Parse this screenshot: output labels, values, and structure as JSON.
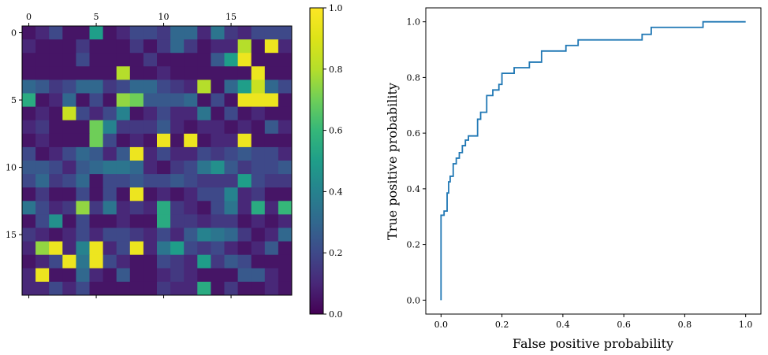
{
  "chart_data": [
    {
      "type": "heatmap",
      "rows": 20,
      "cols": 20,
      "x_ticks": [
        0,
        5,
        10,
        15
      ],
      "y_ticks": [
        0,
        5,
        10,
        15
      ],
      "tick_labels_x": [
        "0",
        "5",
        "10",
        "15"
      ],
      "tick_labels_y": [
        "0",
        "5",
        "10",
        "15"
      ],
      "colormap": "viridis",
      "vmin": 0.0,
      "vmax": 1.0,
      "colorbar_ticks": [
        "0.0",
        "0.2",
        "0.4",
        "0.6",
        "0.8",
        "1.0"
      ],
      "values": [
        [
          0.05,
          0.1,
          0.2,
          0.05,
          0.05,
          0.5,
          0.05,
          0.1,
          0.2,
          0.2,
          0.15,
          0.3,
          0.3,
          0.1,
          0.35,
          0.15,
          0.1,
          0.2,
          0.2,
          0.2
        ],
        [
          0.1,
          0.05,
          0.05,
          0.05,
          0.15,
          0.05,
          0.05,
          0.05,
          0.15,
          0.05,
          0.15,
          0.3,
          0.15,
          0.05,
          0.1,
          0.1,
          0.8,
          0.05,
          0.95,
          0.1
        ],
        [
          0.05,
          0.05,
          0.05,
          0.05,
          0.2,
          0.05,
          0.05,
          0.05,
          0.05,
          0.15,
          0.05,
          0.05,
          0.05,
          0.05,
          0.25,
          0.5,
          0.95,
          0.05,
          0.05,
          0.05
        ],
        [
          0.05,
          0.05,
          0.05,
          0.05,
          0.05,
          0.05,
          0.05,
          0.8,
          0.05,
          0.05,
          0.1,
          0.05,
          0.05,
          0.05,
          0.05,
          0.05,
          0.05,
          0.95,
          0.05,
          0.05
        ],
        [
          0.3,
          0.25,
          0.15,
          0.2,
          0.3,
          0.3,
          0.15,
          0.2,
          0.3,
          0.3,
          0.2,
          0.15,
          0.1,
          0.8,
          0.05,
          0.3,
          0.5,
          0.85,
          0.3,
          0.2
        ],
        [
          0.55,
          0.05,
          0.1,
          0.3,
          0.05,
          0.2,
          0.05,
          0.75,
          0.7,
          0.25,
          0.25,
          0.25,
          0.3,
          0.05,
          0.2,
          0.05,
          0.95,
          0.95,
          0.95,
          0.05
        ],
        [
          0.05,
          0.1,
          0.05,
          0.85,
          0.2,
          0.1,
          0.2,
          0.4,
          0.05,
          0.1,
          0.2,
          0.1,
          0.1,
          0.35,
          0.05,
          0.2,
          0.05,
          0.1,
          0.05,
          0.05
        ],
        [
          0.1,
          0.15,
          0.05,
          0.05,
          0.05,
          0.7,
          0.4,
          0.15,
          0.15,
          0.15,
          0.25,
          0.1,
          0.05,
          0.1,
          0.1,
          0.05,
          0.1,
          0.05,
          0.25,
          0.1
        ],
        [
          0.05,
          0.1,
          0.05,
          0.05,
          0.05,
          0.7,
          0.2,
          0.05,
          0.1,
          0.05,
          0.95,
          0.05,
          0.95,
          0.05,
          0.1,
          0.1,
          0.95,
          0.05,
          0.05,
          0.05
        ],
        [
          0.2,
          0.05,
          0.1,
          0.2,
          0.3,
          0.25,
          0.1,
          0.25,
          0.95,
          0.1,
          0.2,
          0.1,
          0.1,
          0.2,
          0.15,
          0.2,
          0.25,
          0.2,
          0.2,
          0.1
        ],
        [
          0.25,
          0.25,
          0.2,
          0.1,
          0.25,
          0.3,
          0.35,
          0.35,
          0.3,
          0.1,
          0.05,
          0.15,
          0.2,
          0.35,
          0.45,
          0.25,
          0.15,
          0.2,
          0.2,
          0.25
        ],
        [
          0.2,
          0.3,
          0.15,
          0.2,
          0.3,
          0.05,
          0.2,
          0.2,
          0.25,
          0.2,
          0.2,
          0.25,
          0.2,
          0.15,
          0.15,
          0.15,
          0.5,
          0.2,
          0.15,
          0.15
        ],
        [
          0.05,
          0.15,
          0.05,
          0.05,
          0.2,
          0.05,
          0.2,
          0.05,
          0.95,
          0.05,
          0.1,
          0.05,
          0.1,
          0.2,
          0.2,
          0.4,
          0.1,
          0.15,
          0.05,
          0.05
        ],
        [
          0.35,
          0.2,
          0.1,
          0.15,
          0.75,
          0.15,
          0.35,
          0.1,
          0.15,
          0.1,
          0.55,
          0.15,
          0.1,
          0.05,
          0.2,
          0.35,
          0.1,
          0.55,
          0.1,
          0.6
        ],
        [
          0.05,
          0.2,
          0.45,
          0.05,
          0.2,
          0.05,
          0.05,
          0.1,
          0.05,
          0.05,
          0.55,
          0.15,
          0.15,
          0.1,
          0.15,
          0.15,
          0.05,
          0.1,
          0.05,
          0.1
        ],
        [
          0.15,
          0.1,
          0.05,
          0.1,
          0.2,
          0.1,
          0.2,
          0.2,
          0.15,
          0.1,
          0.2,
          0.1,
          0.25,
          0.4,
          0.35,
          0.3,
          0.15,
          0.05,
          0.1,
          0.3
        ],
        [
          0.1,
          0.75,
          0.95,
          0.1,
          0.4,
          0.95,
          0.1,
          0.2,
          0.95,
          0.1,
          0.35,
          0.5,
          0.2,
          0.15,
          0.2,
          0.1,
          0.05,
          0.1,
          0.25,
          0.05
        ],
        [
          0.05,
          0.1,
          0.2,
          0.95,
          0.35,
          0.95,
          0.2,
          0.1,
          0.05,
          0.05,
          0.2,
          0.15,
          0.1,
          0.5,
          0.15,
          0.25,
          0.2,
          0.05,
          0.05,
          0.05
        ],
        [
          0.1,
          0.95,
          0.05,
          0.05,
          0.3,
          0.1,
          0.05,
          0.25,
          0.05,
          0.05,
          0.1,
          0.15,
          0.1,
          0.05,
          0.05,
          0.05,
          0.25,
          0.25,
          0.1,
          0.05
        ],
        [
          0.1,
          0.1,
          0.2,
          0.1,
          0.2,
          0.05,
          0.05,
          0.05,
          0.05,
          0.05,
          0.15,
          0.1,
          0.1,
          0.55,
          0.05,
          0.15,
          0.05,
          0.05,
          0.1,
          0.05
        ]
      ]
    },
    {
      "type": "line",
      "xlabel": "False positive probability",
      "ylabel": "True positive probability",
      "xlim": [
        -0.05,
        1.05
      ],
      "ylim": [
        -0.05,
        1.05
      ],
      "x_ticks": [
        "0.0",
        "0.2",
        "0.4",
        "0.6",
        "0.8",
        "1.0"
      ],
      "y_ticks": [
        "0.0",
        "0.2",
        "0.4",
        "0.6",
        "0.8",
        "1.0"
      ],
      "line_color": "#1f77b4",
      "x": [
        0.0,
        0.0,
        0.01,
        0.01,
        0.02,
        0.02,
        0.025,
        0.025,
        0.03,
        0.03,
        0.04,
        0.04,
        0.05,
        0.05,
        0.06,
        0.06,
        0.07,
        0.07,
        0.08,
        0.08,
        0.09,
        0.09,
        0.1,
        0.1,
        0.12,
        0.12,
        0.13,
        0.13,
        0.15,
        0.15,
        0.17,
        0.17,
        0.19,
        0.19,
        0.2,
        0.2,
        0.24,
        0.24,
        0.29,
        0.29,
        0.33,
        0.33,
        0.41,
        0.41,
        0.45,
        0.45,
        0.66,
        0.66,
        0.69,
        0.69,
        0.86,
        0.86,
        1.0
      ],
      "y": [
        0.0,
        0.305,
        0.305,
        0.32,
        0.32,
        0.385,
        0.385,
        0.425,
        0.425,
        0.445,
        0.445,
        0.49,
        0.49,
        0.51,
        0.51,
        0.53,
        0.53,
        0.555,
        0.555,
        0.575,
        0.575,
        0.59,
        0.59,
        0.59,
        0.59,
        0.65,
        0.65,
        0.675,
        0.675,
        0.735,
        0.735,
        0.755,
        0.755,
        0.775,
        0.775,
        0.815,
        0.815,
        0.835,
        0.835,
        0.855,
        0.855,
        0.895,
        0.895,
        0.915,
        0.915,
        0.935,
        0.935,
        0.955,
        0.955,
        0.98,
        0.98,
        1.0,
        1.0
      ]
    }
  ]
}
